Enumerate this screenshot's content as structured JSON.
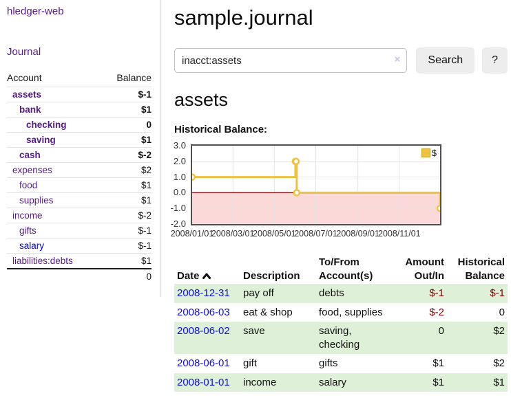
{
  "sidebar": {
    "brand": "hledger-web",
    "nav": [
      {
        "label": "Journal"
      }
    ],
    "accounts_table": {
      "headers": {
        "account": "Account",
        "balance": "Balance"
      },
      "rows": [
        {
          "name": "assets",
          "balance": "$-1",
          "depth": 1,
          "bold": true,
          "balance_style": "negative"
        },
        {
          "name": "bank",
          "balance": "$1",
          "depth": 2,
          "bold": true,
          "balance_style": "normal"
        },
        {
          "name": "checking",
          "balance": "0",
          "depth": 3,
          "bold": true,
          "balance_style": "normal"
        },
        {
          "name": "saving",
          "balance": "$1",
          "depth": 3,
          "bold": true,
          "balance_style": "normal"
        },
        {
          "name": "cash",
          "balance": "$-2",
          "depth": 2,
          "bold": true,
          "balance_style": "negative"
        },
        {
          "name": "expenses",
          "balance": "$2",
          "depth": 1,
          "bold": false,
          "balance_style": "normal"
        },
        {
          "name": "food",
          "balance": "$1",
          "depth": 2,
          "bold": false,
          "balance_style": "normal"
        },
        {
          "name": "supplies",
          "balance": "$1",
          "depth": 2,
          "bold": false,
          "balance_style": "normal"
        },
        {
          "name": "income",
          "balance": "$-2",
          "depth": 1,
          "bold": false,
          "balance_style": "negative-soft"
        },
        {
          "name": "gifts",
          "balance": "$-1",
          "depth": 2,
          "bold": false,
          "balance_style": "negative-soft"
        },
        {
          "name": "salary",
          "balance": "$-1",
          "depth": 2,
          "bold": false,
          "balance_style": "negative-soft",
          "link_color": "unvisited"
        },
        {
          "name": "liabilities:debts",
          "balance": "$1",
          "depth": 1,
          "bold": false,
          "balance_style": "normal"
        }
      ],
      "total": "0"
    }
  },
  "main": {
    "title": "sample.journal",
    "search": {
      "value": "inacct:assets",
      "clear_icon": "×",
      "button": "Search",
      "help_button": "?"
    },
    "section_heading": "assets",
    "chart_label": "Historical Balance:"
  },
  "chart_data": {
    "type": "line",
    "title": "Historical Balance",
    "step": "after",
    "series": [
      {
        "name": "$",
        "color": "#EDC240",
        "points": [
          {
            "date": "2008-01-01",
            "day": 0,
            "value": 1
          },
          {
            "date": "2008-06-01",
            "day": 152,
            "value": 2
          },
          {
            "date": "2008-06-02",
            "day": 153,
            "value": 2
          },
          {
            "date": "2008-06-03",
            "day": 154,
            "value": 0
          },
          {
            "date": "2008-12-31",
            "day": 365,
            "value": -1
          }
        ]
      }
    ],
    "ylim": [
      -2,
      3
    ],
    "yticks": [
      "3.0",
      "2.0",
      "1.0",
      "0.0",
      "-1.0",
      "-2.0"
    ],
    "ytick_values": [
      3,
      2,
      1,
      0,
      -1,
      -2
    ],
    "x_domain_days": [
      0,
      365
    ],
    "xticks": [
      {
        "day": 0,
        "label": "2008/01/01"
      },
      {
        "day": 60,
        "label": "2008/03/01"
      },
      {
        "day": 121,
        "label": "2008/05/01"
      },
      {
        "day": 182,
        "label": "2008/07/01"
      },
      {
        "day": 244,
        "label": "2008/09/01"
      },
      {
        "day": 305,
        "label": "2008/11/01"
      }
    ],
    "grid": true,
    "legend_position": "top-right",
    "colors": {
      "grid": "#e3e3e3",
      "plot_border": "#4f4f4f",
      "zero_line": "#8b0000",
      "negative_region": "#fbd9d9",
      "marker_fill": "#ffffff"
    }
  },
  "register_table": {
    "headers": {
      "date": "Date",
      "description": "Description",
      "accounts": "To/From Account(s)",
      "amount": "Amount Out/In",
      "balance": "Historical Balance"
    },
    "rows": [
      {
        "date": "2008-12-31",
        "description": "pay off",
        "accounts": "debts",
        "amount": "$-1",
        "balance": "$-1",
        "amount_negative": true,
        "balance_negative": true
      },
      {
        "date": "2008-06-03",
        "description": "eat & shop",
        "accounts": "food, supplies",
        "amount": "$-2",
        "balance": "0",
        "amount_negative": true,
        "balance_negative": false
      },
      {
        "date": "2008-06-02",
        "description": "save",
        "accounts": "saving, checking",
        "amount": "0",
        "balance": "$2",
        "amount_negative": false,
        "balance_negative": false
      },
      {
        "date": "2008-06-01",
        "description": "gift",
        "accounts": "gifts",
        "amount": "$1",
        "balance": "$2",
        "amount_negative": false,
        "balance_negative": false
      },
      {
        "date": "2008-01-01",
        "description": "income",
        "accounts": "salary",
        "amount": "$1",
        "balance": "$1",
        "amount_negative": false,
        "balance_negative": false
      }
    ]
  }
}
